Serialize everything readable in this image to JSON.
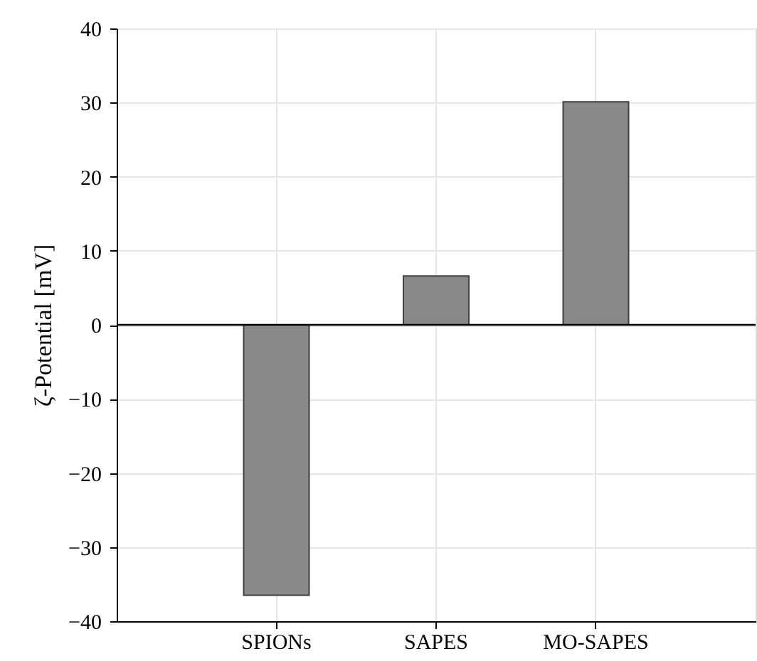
{
  "chart_data": {
    "type": "bar",
    "ylabel": "ζ-Potential [mV]",
    "categories": [
      "SPIONs",
      "SAPES",
      "MO-SAPES"
    ],
    "values": [
      -36.5,
      6.6,
      30.1
    ],
    "color": "#898989",
    "ylim": [
      -40,
      40
    ],
    "yticks": [
      -40,
      -30,
      -20,
      -10,
      0,
      10,
      20,
      30,
      40
    ],
    "grid": true,
    "ref_lines": [
      {
        "axis": "y",
        "value": 0,
        "color": "#000000"
      }
    ]
  }
}
